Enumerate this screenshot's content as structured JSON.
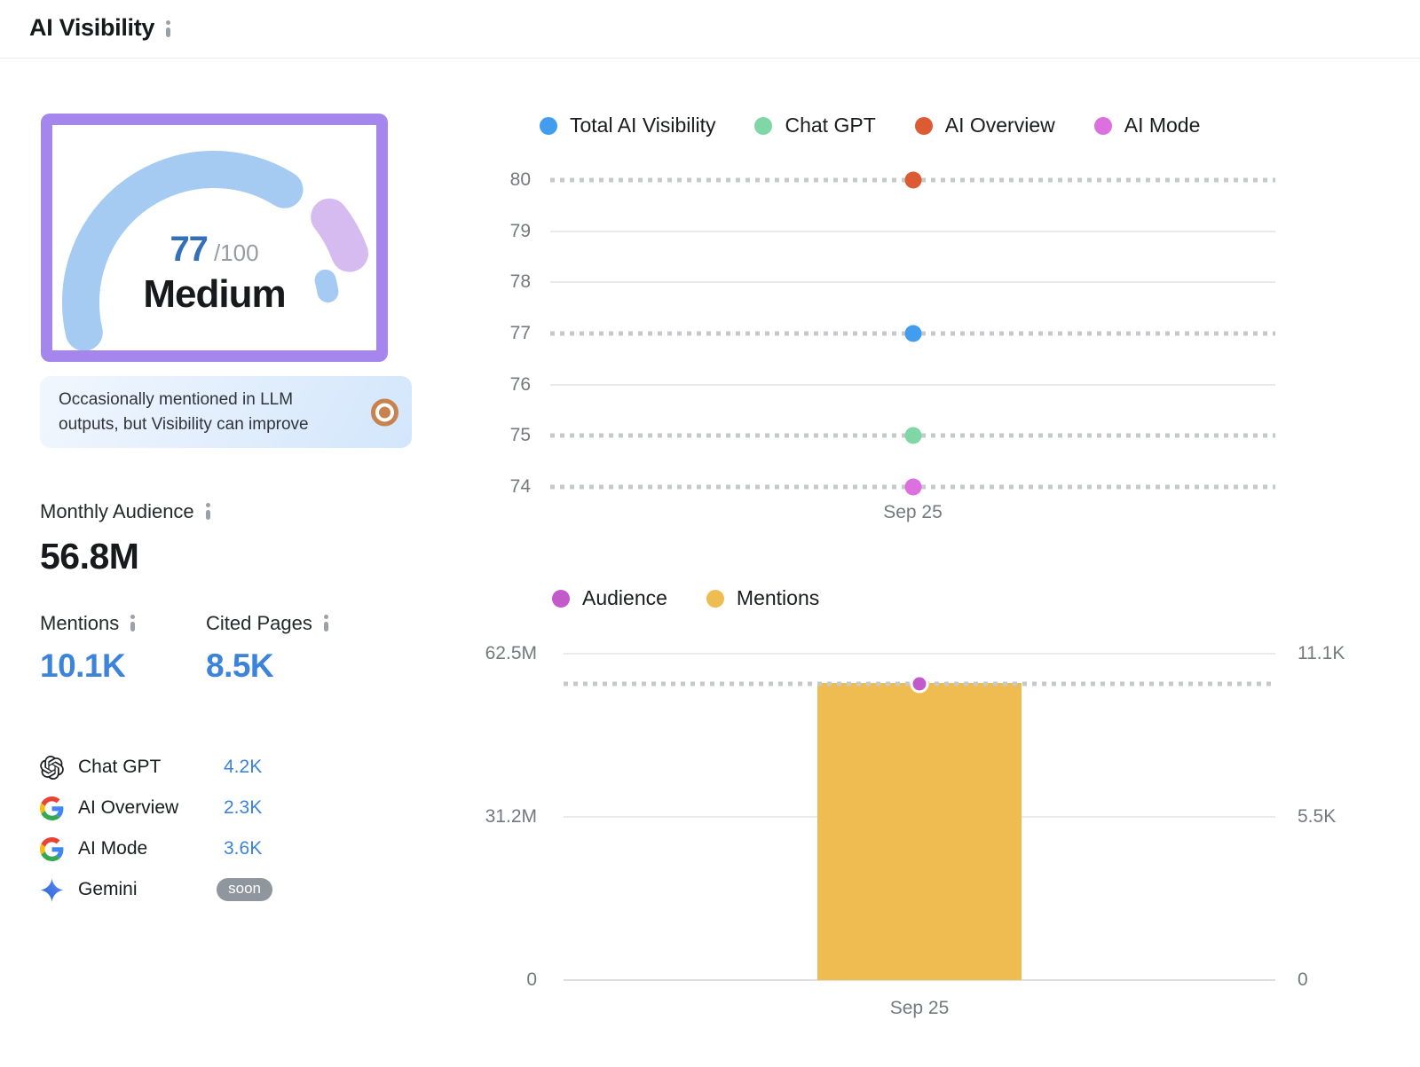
{
  "header": {
    "title": "AI Visibility"
  },
  "gauge": {
    "score": "77",
    "score_max": "/100",
    "label": "Medium",
    "description": "Occasionally mentioned in LLM outputs, but Visibility can improve",
    "arc_color": "#a5cbf3",
    "remainder_color": "#d5bbf0",
    "frame_color": "#a586ec"
  },
  "metrics": {
    "monthly_audience": {
      "label": "Monthly Audience",
      "value": "56.8M"
    },
    "mentions": {
      "label": "Mentions",
      "value": "10.1K"
    },
    "cited_pages": {
      "label": "Cited Pages",
      "value": "8.5K"
    }
  },
  "platforms": [
    {
      "name": "Chat GPT",
      "icon": "openai-icon",
      "value": "4.2K"
    },
    {
      "name": "AI Overview",
      "icon": "google-icon",
      "value": "2.3K"
    },
    {
      "name": "AI Mode",
      "icon": "google-icon",
      "value": "3.6K"
    },
    {
      "name": "Gemini",
      "icon": "gemini-icon",
      "badge": "soon"
    }
  ],
  "chart_data": [
    {
      "type": "scatter",
      "title": "AI Visibility score by platform over time",
      "x": [
        "Sep 25"
      ],
      "series": [
        {
          "name": "Total AI Visibility",
          "color": "#429def",
          "values": [
            77
          ]
        },
        {
          "name": "Chat GPT",
          "color": "#80d7a6",
          "values": [
            75
          ]
        },
        {
          "name": "AI Overview",
          "color": "#dd5b33",
          "values": [
            80
          ]
        },
        {
          "name": "AI Mode",
          "color": "#dc70de",
          "values": [
            74
          ]
        }
      ],
      "yticks": [
        80,
        79,
        78,
        77,
        76,
        75,
        74
      ],
      "ylim": [
        74,
        80
      ],
      "legend_position": "top",
      "grid": "horizontal, dashed rows where data points exist"
    },
    {
      "type": "bar",
      "title": "Audience and Mentions over time",
      "x": [
        "Sep 25"
      ],
      "series": [
        {
          "name": "Audience",
          "mark": "scatter",
          "axis": "left",
          "color": "#c459cc",
          "values": [
            56800000
          ],
          "display": [
            "56.8M"
          ]
        },
        {
          "name": "Mentions",
          "mark": "bar",
          "axis": "right",
          "color": "#efbc51",
          "values": [
            10100
          ],
          "display": [
            "10.1K"
          ]
        }
      ],
      "yticks_left": [
        "62.5M",
        "31.2M",
        "0"
      ],
      "yticks_right": [
        "11.1K",
        "5.5K",
        "0"
      ],
      "ylim_left": [
        0,
        62500000
      ],
      "ylim_right": [
        0,
        11100
      ],
      "legend_position": "top",
      "grid": "horizontal"
    }
  ]
}
